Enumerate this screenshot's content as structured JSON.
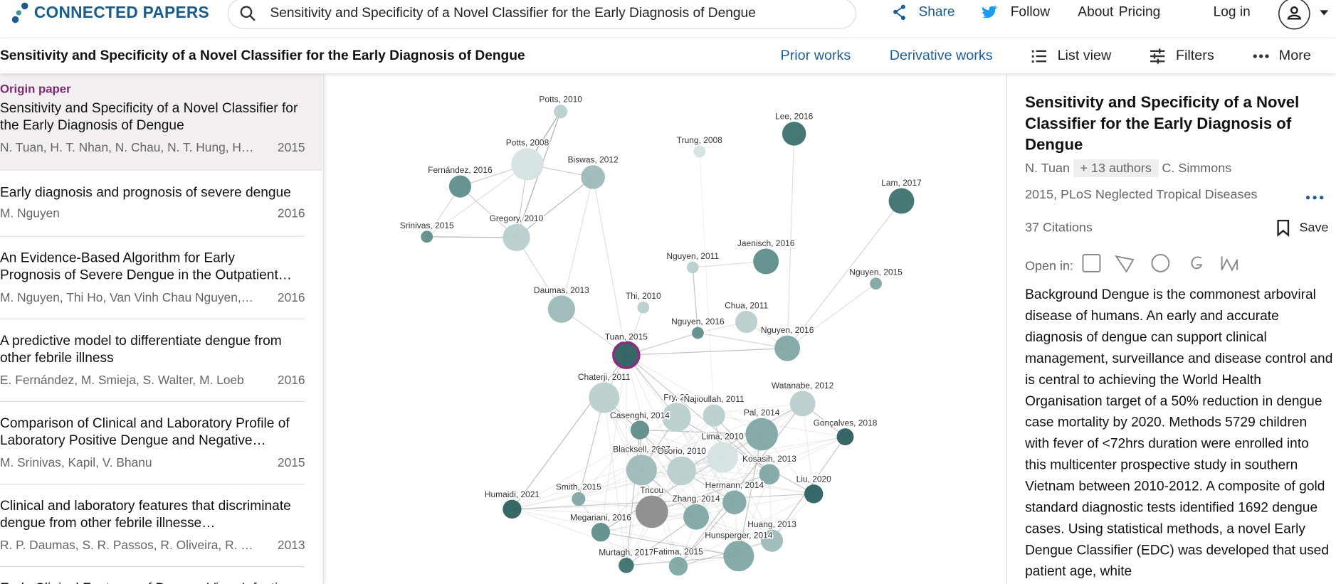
{
  "header": {
    "brand": "CONNECTED PAPERS",
    "search": "Sensitivity and Specificity of a Novel Classifier for the Early Diagnosis of Dengue",
    "nav": [
      "Share",
      "Follow",
      "About",
      "Pricing",
      "Log in"
    ]
  },
  "toolbar": {
    "title": "Sensitivity and Specificity of a Novel Classifier for the Early Diagnosis of Dengue",
    "actions": [
      "Prior works",
      "Derivative works",
      "List view",
      "Filters",
      "More"
    ]
  },
  "list": {
    "origin_label": "Origin paper",
    "items": [
      {
        "title": "Sensitivity and Specificity of a Novel Classifier for the Early Diagnosis of Dengue",
        "authors": "N. Tuan, H. T. Nhan, N. Chau, N. T. Hung, H. M....",
        "year": "2015"
      },
      {
        "title": "Early diagnosis and prognosis of severe dengue",
        "authors": "M. Nguyen",
        "year": "2016"
      },
      {
        "title": "An Evidence-Based Algorithm for Early Prognosis of Severe Dengue in the Outpatient…",
        "authors": "M. Nguyen, Thi Ho, Van Vinh Chau Nguyen, T....",
        "year": "2016"
      },
      {
        "title": "A predictive model to differentiate dengue from other febrile illness",
        "authors": "E. Fernández, M. Smieja, S. Walter, M. Loeb",
        "year": "2016"
      },
      {
        "title": "Comparison of Clinical and Laboratory Profile of Laboratory Positive Dengue and Negative…",
        "authors": "M. Srinivas, Kapil, V. Bhanu",
        "year": "2015"
      },
      {
        "title": "Clinical and laboratory features that discriminate dengue from other febrile illnesse…",
        "authors": "R. P. Daumas, S. R. Passos, R. Oliveira, R. M....",
        "year": "2013"
      },
      {
        "title": "Early Clinical Features of Dengue Virus Infectio",
        "authors": "",
        "year": ""
      }
    ]
  },
  "graph": {
    "nodes": [
      "Potts, 2010",
      "Potts, 2008",
      "Biswas, 2012",
      "Fernández, 2016",
      "Srinivas, 2015",
      "Gregory, 2010",
      "Trung, 2008",
      "Lee, 2016",
      "Lam, 2017",
      "Jaenisch, 2016",
      "Nguyen, 2011",
      "Nguyen, 2015",
      "Daumas, 2013",
      "Thi, 2010",
      "Chua, 2011",
      "Nguyen, 2016",
      "Nguyen, 2016",
      "Tuan, 2015",
      "Chaterji, 2011",
      "Fry, 20",
      "Najioullah, 2011",
      "Watanabe, 2012",
      "Casenghi, 2014",
      "Pal, 2014",
      "Gonçalves, 2018",
      "Lima, 2010",
      "Blacksell, 2007",
      "Osorio, 2010",
      "Kosasih, 2013",
      "Liu, 2020",
      "Smith, 2015",
      "Humaidi, 2021",
      "Tricou",
      "Hermann, 2014",
      "Zhang, 2014",
      "Megariani, 2016",
      "Huang, 2013",
      "Hunsperger, 2014",
      "Murtagh, 2017",
      "Fatima, 2015"
    ]
  },
  "detail": {
    "title": "Sensitivity and Specificity of a Novel Classifier for the Early Diagnosis of Dengue",
    "authors": [
      "N. Tuan",
      "+ 13 authors",
      "C. Simmons"
    ],
    "meta": "2015, PLoS Neglected Tropical Diseases",
    "citations": "37 Citations",
    "save": "Save",
    "open_in": "Open in:",
    "abstract": "Background Dengue is the commonest arboviral disease of humans. An early and accurate diagnosis of dengue can support clinical management, surveillance and disease control and is central to achieving the World Health Organisation target of a 50% reduction in dengue case mortality by 2020. Methods 5729 children with fever of <72hrs duration were enrolled into this multicenter prospective study in southern Vietnam between 2010-2012. A composite of gold standard diagnostic tests identified 1692 dengue cases. Using statistical methods, a novel Early Dengue Classifier (EDC) was developed that used patient age, white"
  }
}
